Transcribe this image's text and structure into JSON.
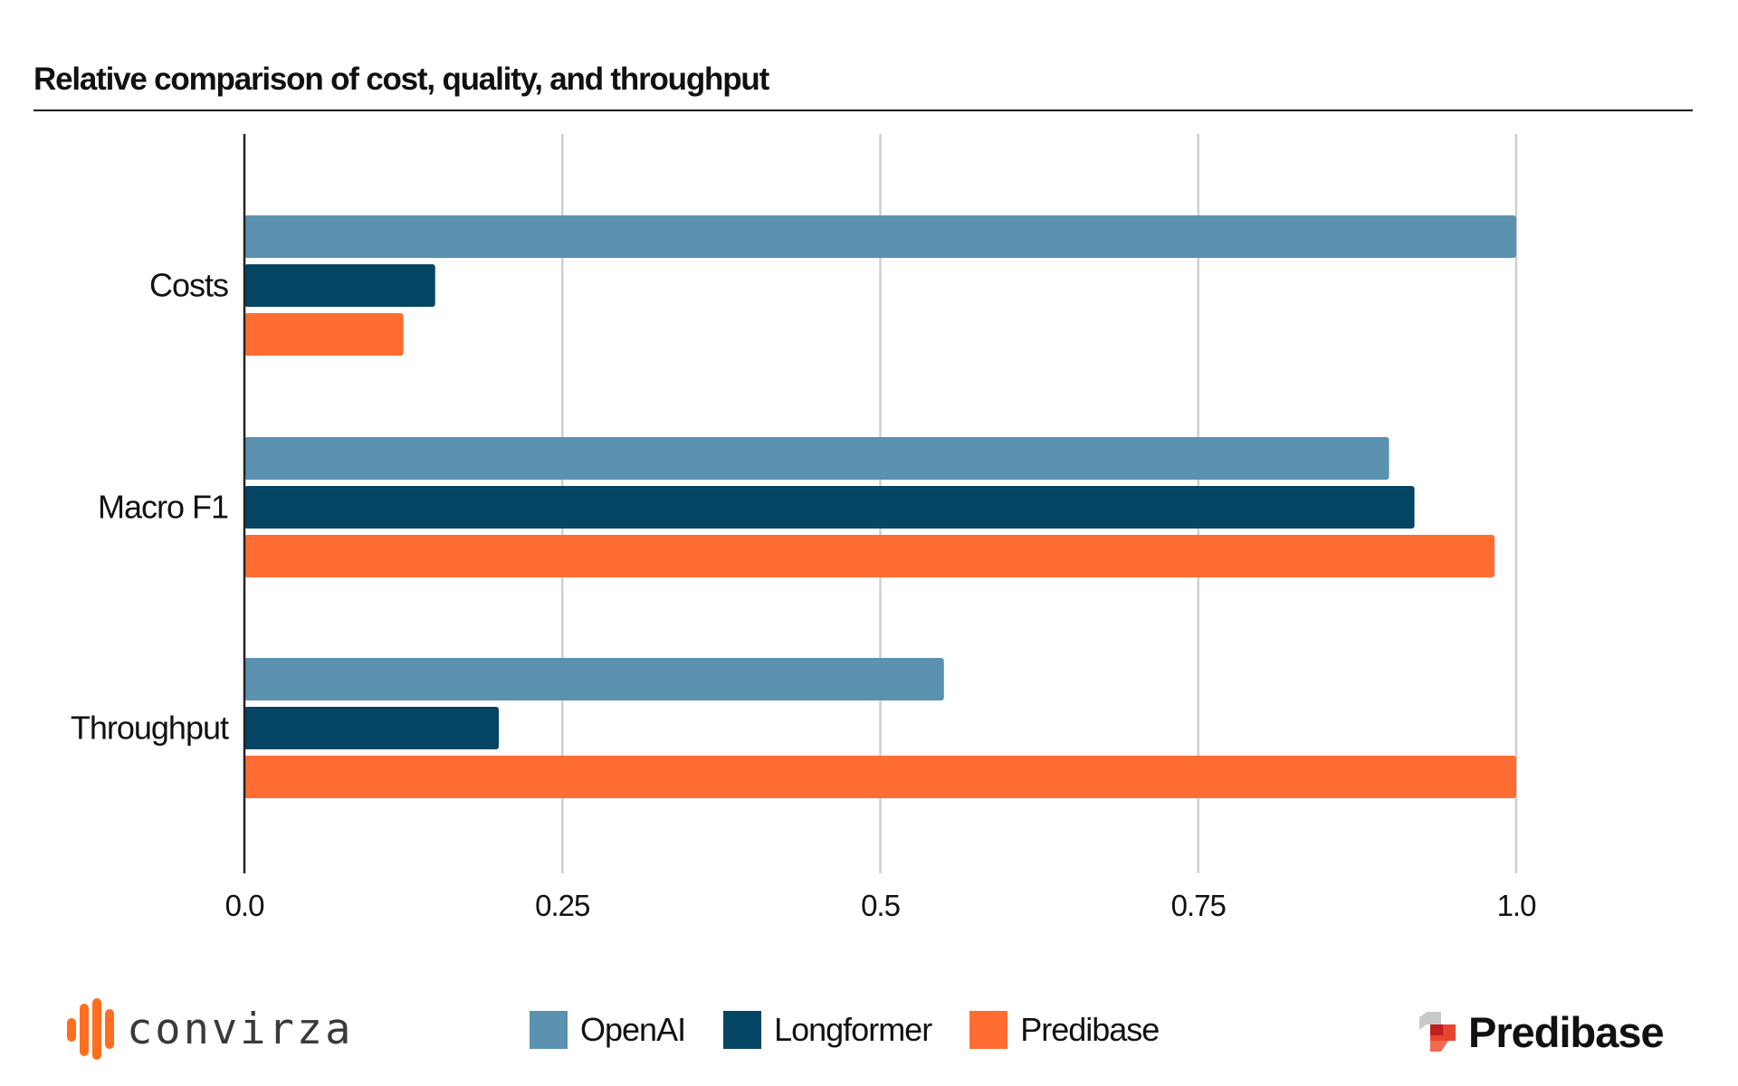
{
  "chart_data": {
    "type": "bar",
    "orientation": "horizontal",
    "title": "Relative comparison of cost, quality, and throughput",
    "categories": [
      "Costs",
      "Macro F1",
      "Throughput"
    ],
    "series": [
      {
        "name": "OpenAI",
        "color": "#5a92b0",
        "values": [
          1.0,
          0.9,
          0.55
        ]
      },
      {
        "name": "Longformer",
        "color": "#044563",
        "values": [
          0.15,
          0.92,
          0.2
        ]
      },
      {
        "name": "Predibase",
        "color": "#ff6d33",
        "values": [
          0.125,
          0.983,
          1.0
        ]
      }
    ],
    "xlim": [
      0,
      1.0
    ],
    "xticks": [
      0,
      0.25,
      0.5,
      0.75,
      1.0
    ],
    "xtick_labels": [
      "0.0",
      "0.25",
      "0.5",
      "0.75",
      "1.0"
    ],
    "grid": true,
    "legend_position": "bottom-center",
    "xlabel": "",
    "ylabel": ""
  },
  "branding": {
    "left_logo_text": "convirza",
    "right_logo_text": "Predibase",
    "left_logo_color": "#ff6d1f",
    "right_logo_colors": [
      "#c9c9c9",
      "#e8442e",
      "#c21e1e"
    ]
  }
}
